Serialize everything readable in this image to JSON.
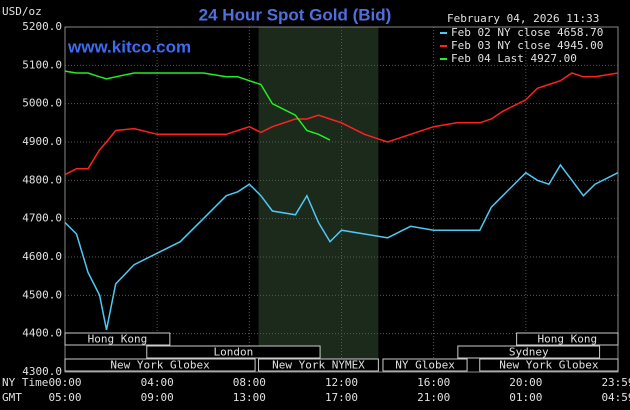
{
  "chart_data": {
    "type": "line",
    "title": "24 Hour Spot Gold (Bid)",
    "ylabel": "USD/oz",
    "site": "www.kitco.com",
    "timestamp": "February 04, 2026 11:33",
    "xlabel": "NY Time",
    "x2label": "GMT",
    "x": [
      0,
      0.5,
      1,
      1.5,
      1.8,
      2.2,
      3,
      4,
      5,
      6,
      7,
      7.5,
      8,
      8.5,
      9,
      10,
      10.5,
      11,
      11.5,
      12,
      13,
      14,
      15,
      16,
      17,
      18,
      18.5,
      19,
      20,
      20.5,
      21,
      21.5,
      22,
      22.5,
      23,
      24
    ],
    "series": [
      {
        "name": "Feb 02 NY close 4658.70",
        "color": "#4ec8f4",
        "values": [
          4690,
          4660,
          4560,
          4500,
          4410,
          4530,
          4580,
          4610,
          4640,
          4700,
          4760,
          4770,
          4790,
          4760,
          4720,
          4710,
          4760,
          4690,
          4640,
          4670,
          4660,
          4650,
          4680,
          4670,
          4670,
          4670,
          4730,
          4760,
          4820,
          4800,
          4790,
          4840,
          4800,
          4760,
          4790,
          4820
        ]
      },
      {
        "name": "Feb 03 NY close 4945.00",
        "color": "#ff2020",
        "values": [
          4815,
          4830,
          4830,
          4880,
          4900,
          4930,
          4935,
          4920,
          4920,
          4920,
          4920,
          4930,
          4940,
          4925,
          4940,
          4960,
          4960,
          4970,
          4960,
          4950,
          4920,
          4900,
          4920,
          4940,
          4950,
          4950,
          4960,
          4980,
          5010,
          5040,
          5050,
          5060,
          5080,
          5070,
          5070,
          5080
        ]
      },
      {
        "name": "Feb 04 Last 4927.00",
        "color": "#22ee22",
        "values": [
          5085,
          5080,
          5080,
          5070,
          5065,
          5070,
          5080,
          5080,
          5080,
          5080,
          5070,
          5070,
          5060,
          5050,
          5000,
          4970,
          4930,
          4920,
          4905,
          null,
          null,
          null,
          null,
          null,
          null,
          null,
          null,
          null,
          null,
          null,
          null,
          null,
          null,
          null,
          null,
          null
        ]
      }
    ],
    "xlim": [
      0,
      24
    ],
    "ylim": [
      4300,
      5200
    ],
    "xticks": [
      {
        "value": 0,
        "label": "00:00"
      },
      {
        "value": 4,
        "label": "04:00"
      },
      {
        "value": 8,
        "label": "08:00"
      },
      {
        "value": 12,
        "label": "12:00"
      },
      {
        "value": 16,
        "label": "16:00"
      },
      {
        "value": 20,
        "label": "20:00"
      },
      {
        "value": 24,
        "label": "23:59"
      }
    ],
    "x2ticks": [
      {
        "value": 0,
        "label": "05:00"
      },
      {
        "value": 4,
        "label": "09:00"
      },
      {
        "value": 8,
        "label": "13:00"
      },
      {
        "value": 12,
        "label": "17:00"
      },
      {
        "value": 16,
        "label": "21:00"
      },
      {
        "value": 20,
        "label": "01:00"
      },
      {
        "value": 24,
        "label": "04:59"
      }
    ],
    "yticks": [
      {
        "value": 4300,
        "label": "4300.0"
      },
      {
        "value": 4400,
        "label": "4400.0"
      },
      {
        "value": 4500,
        "label": "4500.0"
      },
      {
        "value": 4600,
        "label": "4600.0"
      },
      {
        "value": 4700,
        "label": "4700.0"
      },
      {
        "value": 4800,
        "label": "4800.0"
      },
      {
        "value": 4900,
        "label": "4900.0"
      },
      {
        "value": 5000,
        "label": "5000.0"
      },
      {
        "value": 5100,
        "label": "5100.0"
      },
      {
        "value": 5200,
        "label": "5200.0"
      }
    ],
    "grid": true,
    "sessions": [
      {
        "label": "Hong Kong",
        "start": 0,
        "end": 4.55,
        "row": 1
      },
      {
        "label": "Hong Kong",
        "start": 19.6,
        "end": 24,
        "row": 1
      },
      {
        "label": "London",
        "start": 3.55,
        "end": 11.07,
        "row": 2
      },
      {
        "label": "Sydney",
        "start": 17.05,
        "end": 23.2,
        "row": 2
      },
      {
        "label": "New York Globex",
        "start": 0,
        "end": 8.25,
        "row": 3
      },
      {
        "label": "New York NYMEX",
        "start": 8.4,
        "end": 13.6,
        "row": 3,
        "shade": true
      },
      {
        "label": "NY Globex",
        "start": 13.8,
        "end": 17.45,
        "row": 3
      },
      {
        "label": "New York Globex",
        "start": 18,
        "end": 24,
        "row": 3
      }
    ]
  }
}
